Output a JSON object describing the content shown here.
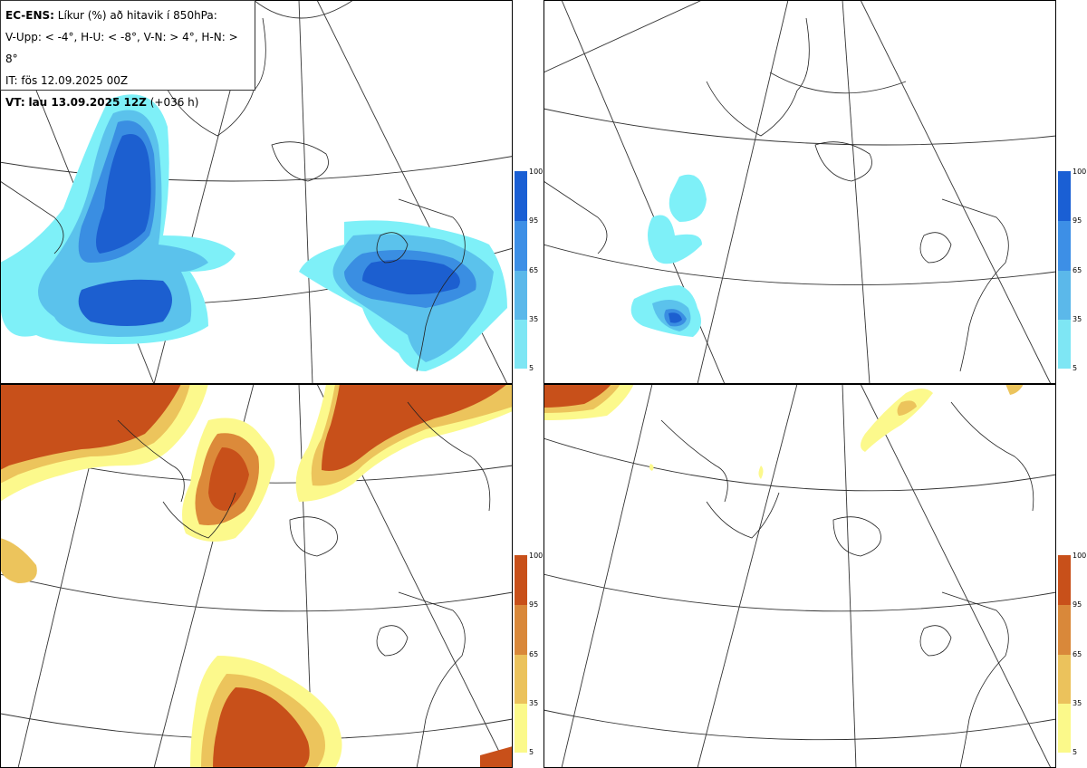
{
  "header": {
    "model": "EC-ENS:",
    "title": "Líkur (%) að hitavik í 850hPa:",
    "thresholds": "V-Upp: < -4°, H-U: < -8°, V-N: > 4°, H-N: > 8°",
    "init_time": "IT: fös 12.09.2025 00Z",
    "valid_label": "VT:",
    "valid_time": "lau 13.09.2025 12Z",
    "lead": "(+036 h)"
  },
  "panels": [
    {
      "id": "upper-left",
      "field": "cold-anomaly-below-minus-4"
    },
    {
      "id": "upper-right",
      "field": "cold-anomaly-below-minus-8"
    },
    {
      "id": "lower-left",
      "field": "warm-anomaly-above-4"
    },
    {
      "id": "lower-right",
      "field": "warm-anomaly-above-8"
    }
  ],
  "legend_cold": {
    "ticks": [
      "100",
      "95",
      "65",
      "35",
      "5"
    ],
    "colors": [
      "#1a5fd4",
      "#3d8fe6",
      "#5bb8ea",
      "#7ee6f4"
    ]
  },
  "legend_warm": {
    "ticks": [
      "100",
      "95",
      "65",
      "35",
      "5"
    ],
    "colors": [
      "#c8501a",
      "#d9883a",
      "#ebc25c",
      "#fbf98a"
    ]
  },
  "colors": {
    "cold_levels": [
      "#7ef0f8",
      "#5bc2ec",
      "#3a8ee2",
      "#1c5fd0"
    ],
    "warm_levels": [
      "#fcf98c",
      "#ecc45c",
      "#dc8a3a",
      "#c8501a"
    ],
    "coast": "#222222",
    "grid": "#333333"
  }
}
